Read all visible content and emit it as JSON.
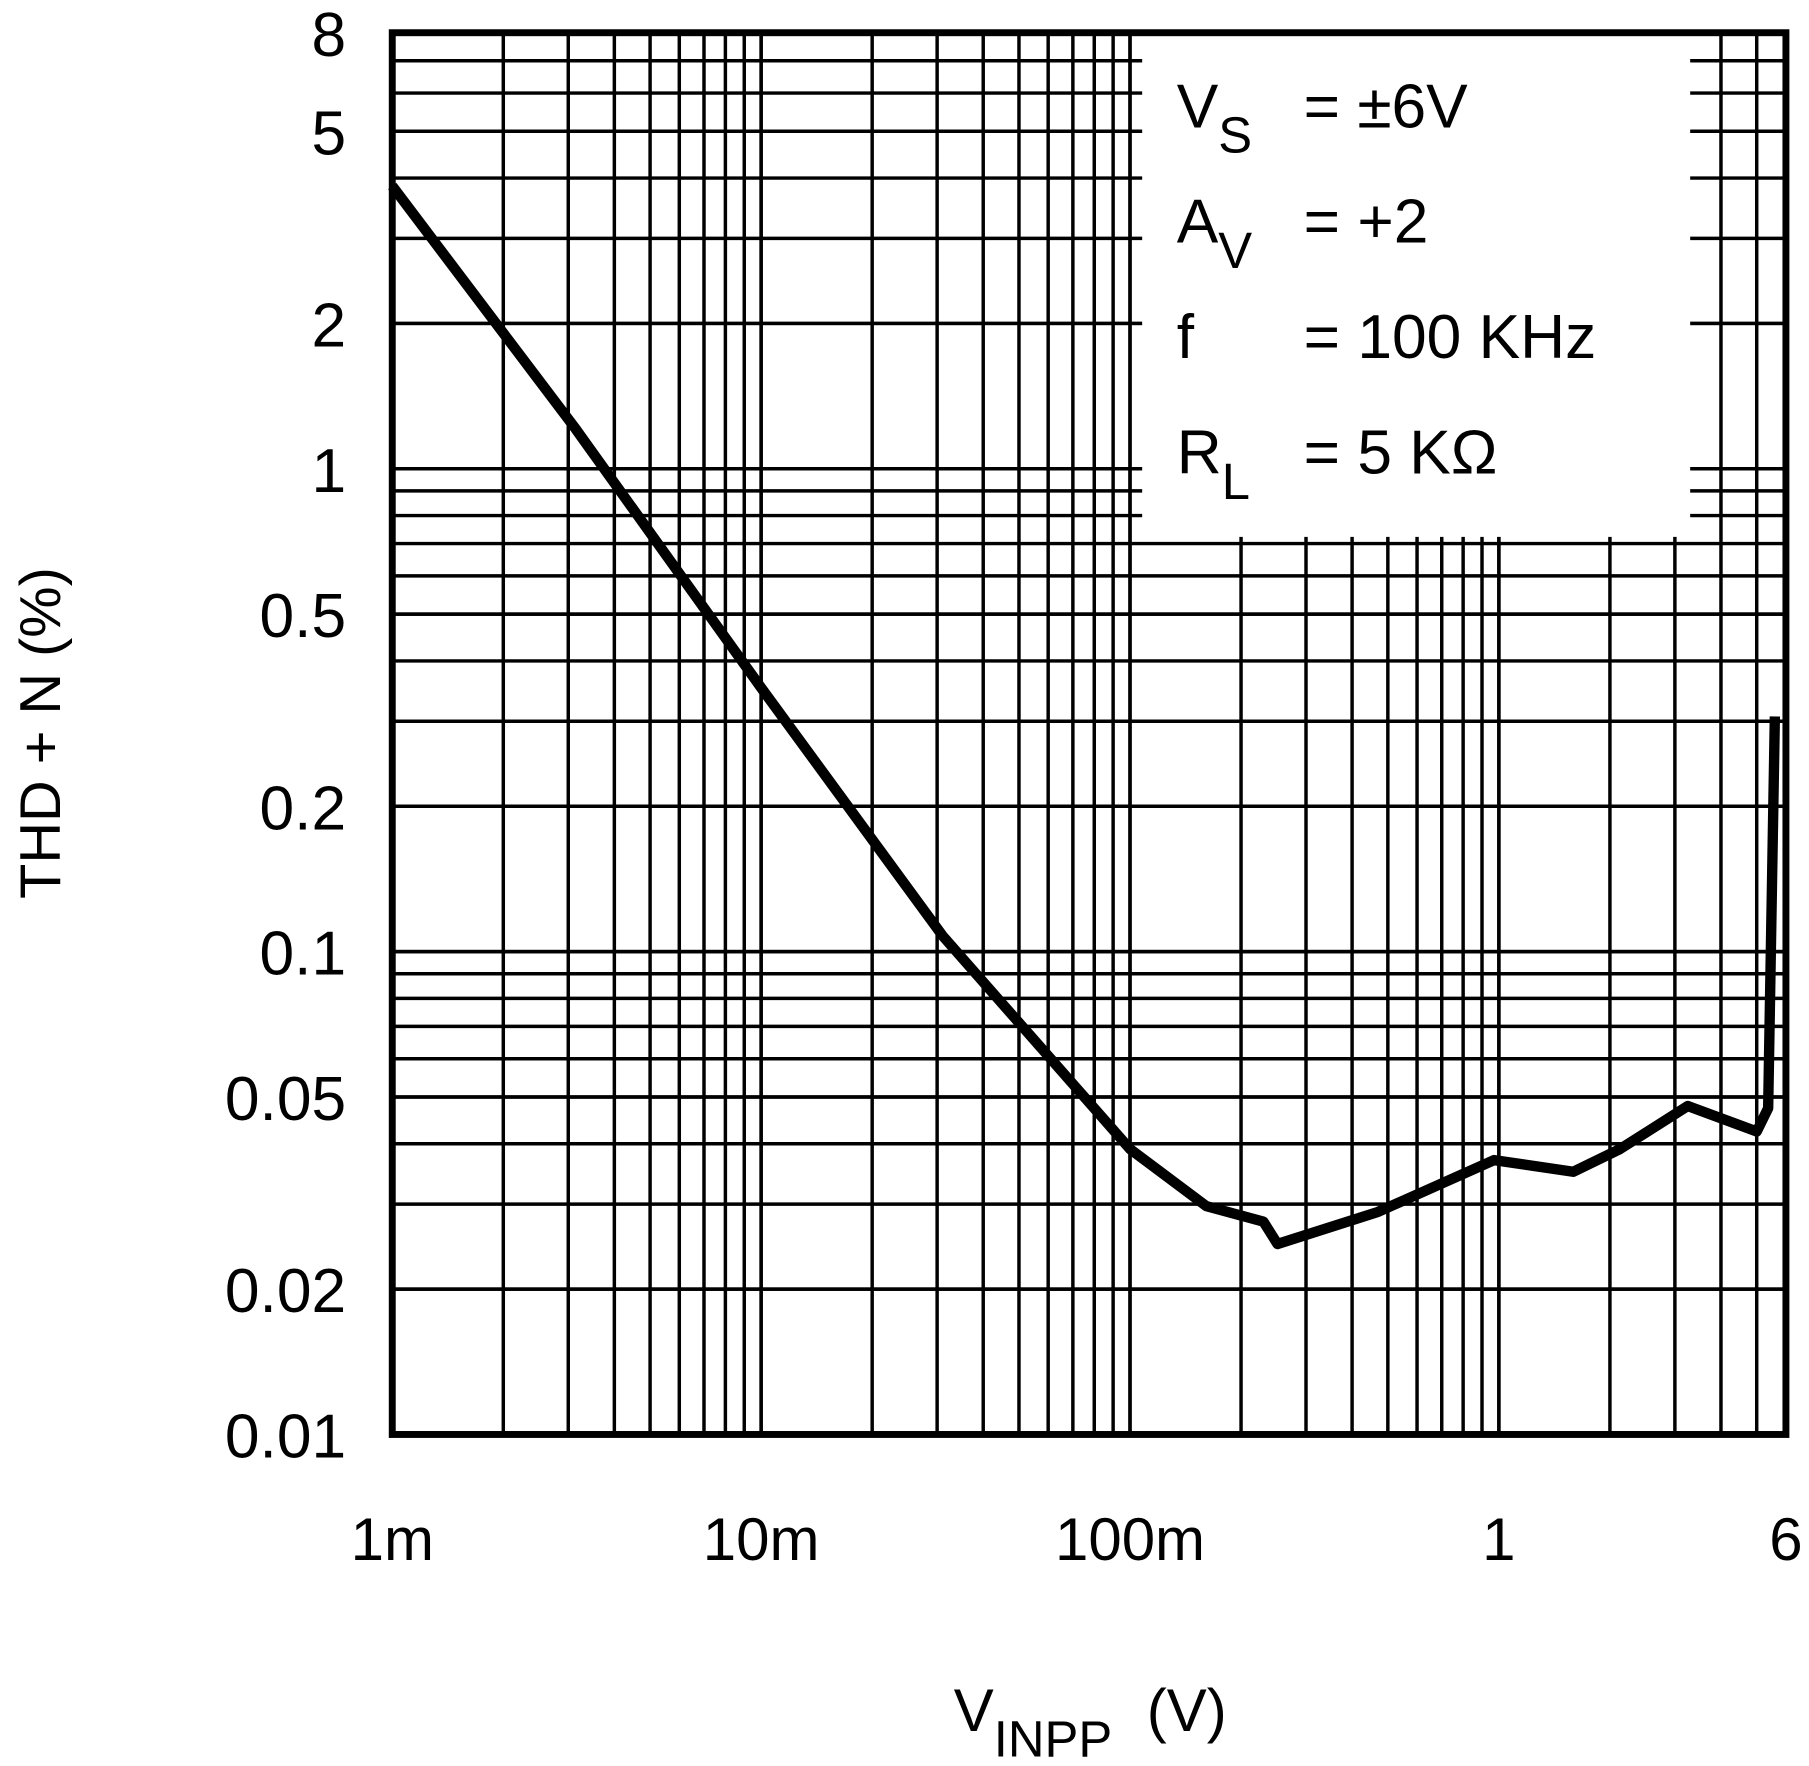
{
  "chart_data": {
    "type": "line",
    "y_label": "THD + N (%)",
    "x_label": {
      "main": "V",
      "sub": "INPP",
      "unit": "(V)"
    },
    "log_x": true,
    "log_y": true,
    "grid": true,
    "minor_grid": true,
    "xlim": [
      0.001,
      6
    ],
    "ylim": [
      0.01,
      8
    ],
    "xticks": [
      {
        "value": 0.001,
        "label": "1m"
      },
      {
        "value": 0.01,
        "label": "10m"
      },
      {
        "value": 0.1,
        "label": "100m"
      },
      1,
      6
    ],
    "yticks": [
      0.01,
      0.02,
      0.05,
      0.1,
      0.2,
      0.5,
      1,
      2,
      5,
      8
    ],
    "annotations": [
      {
        "main": "V",
        "sub": "S",
        "rest": "=  ±6V"
      },
      {
        "main": "A",
        "sub": "V",
        "rest": "=  +2"
      },
      {
        "main": "f",
        "rest": "=  100 KHz"
      },
      {
        "main": "R",
        "sub": "L",
        "rest": "=  5 KΩ"
      }
    ],
    "series": [
      {
        "color": "#000000",
        "x": [
          0.001,
          0.00314,
          0.01,
          0.031,
          0.1,
          0.161,
          0.23,
          0.251,
          0.47,
          0.97,
          1.59,
          2.13,
          3.25,
          5.0,
          5.37,
          5.6
        ],
        "values": [
          3.85,
          1.21,
          0.352,
          0.108,
          0.039,
          0.0297,
          0.0276,
          0.0248,
          0.0289,
          0.037,
          0.035,
          0.039,
          0.0479,
          0.0424,
          0.0474,
          0.307
        ]
      }
    ]
  }
}
